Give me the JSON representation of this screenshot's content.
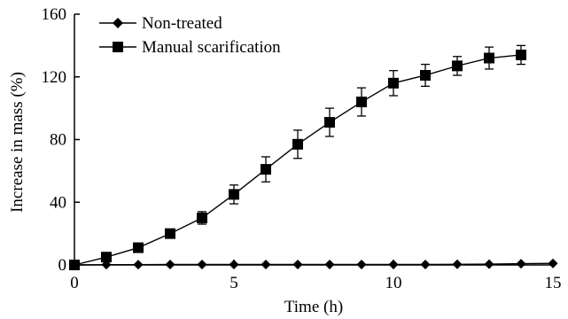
{
  "chart_data": {
    "type": "line",
    "title": "",
    "xlabel": "Time (h)",
    "ylabel": "Increase in mass (%)",
    "xlim": [
      0,
      15
    ],
    "ylim": [
      0,
      160
    ],
    "x_ticks": [
      0,
      5,
      10,
      15
    ],
    "y_ticks": [
      0,
      40,
      80,
      120,
      160
    ],
    "x_tick_labels": [
      "0",
      "5",
      "10",
      "15"
    ],
    "y_tick_labels": [
      "0",
      "40",
      "80",
      "120",
      "160"
    ],
    "grid": false,
    "legend_position": "top-left",
    "series": [
      {
        "name": "Non-treated",
        "marker": "diamond",
        "color": "#000000",
        "x": [
          0,
          1,
          2,
          3,
          4,
          5,
          6,
          7,
          8,
          9,
          10,
          11,
          12,
          13,
          14,
          15
        ],
        "y": [
          0,
          0.2,
          0.2,
          0.3,
          0.3,
          0.3,
          0.3,
          0.3,
          0.3,
          0.3,
          0.3,
          0.3,
          0.4,
          0.5,
          0.8,
          1.0
        ],
        "error": []
      },
      {
        "name": "Manual scarification",
        "marker": "square",
        "color": "#000000",
        "x": [
          0,
          1,
          2,
          3,
          4,
          5,
          6,
          7,
          8,
          9,
          10,
          11,
          12,
          13,
          14
        ],
        "y": [
          0,
          5,
          11,
          20,
          30,
          45,
          61,
          77,
          91,
          104,
          116,
          121,
          127,
          132,
          134
        ],
        "error": [
          0,
          1,
          1,
          2,
          4,
          6,
          8,
          9,
          9,
          9,
          8,
          7,
          6,
          7,
          6
        ]
      }
    ]
  }
}
